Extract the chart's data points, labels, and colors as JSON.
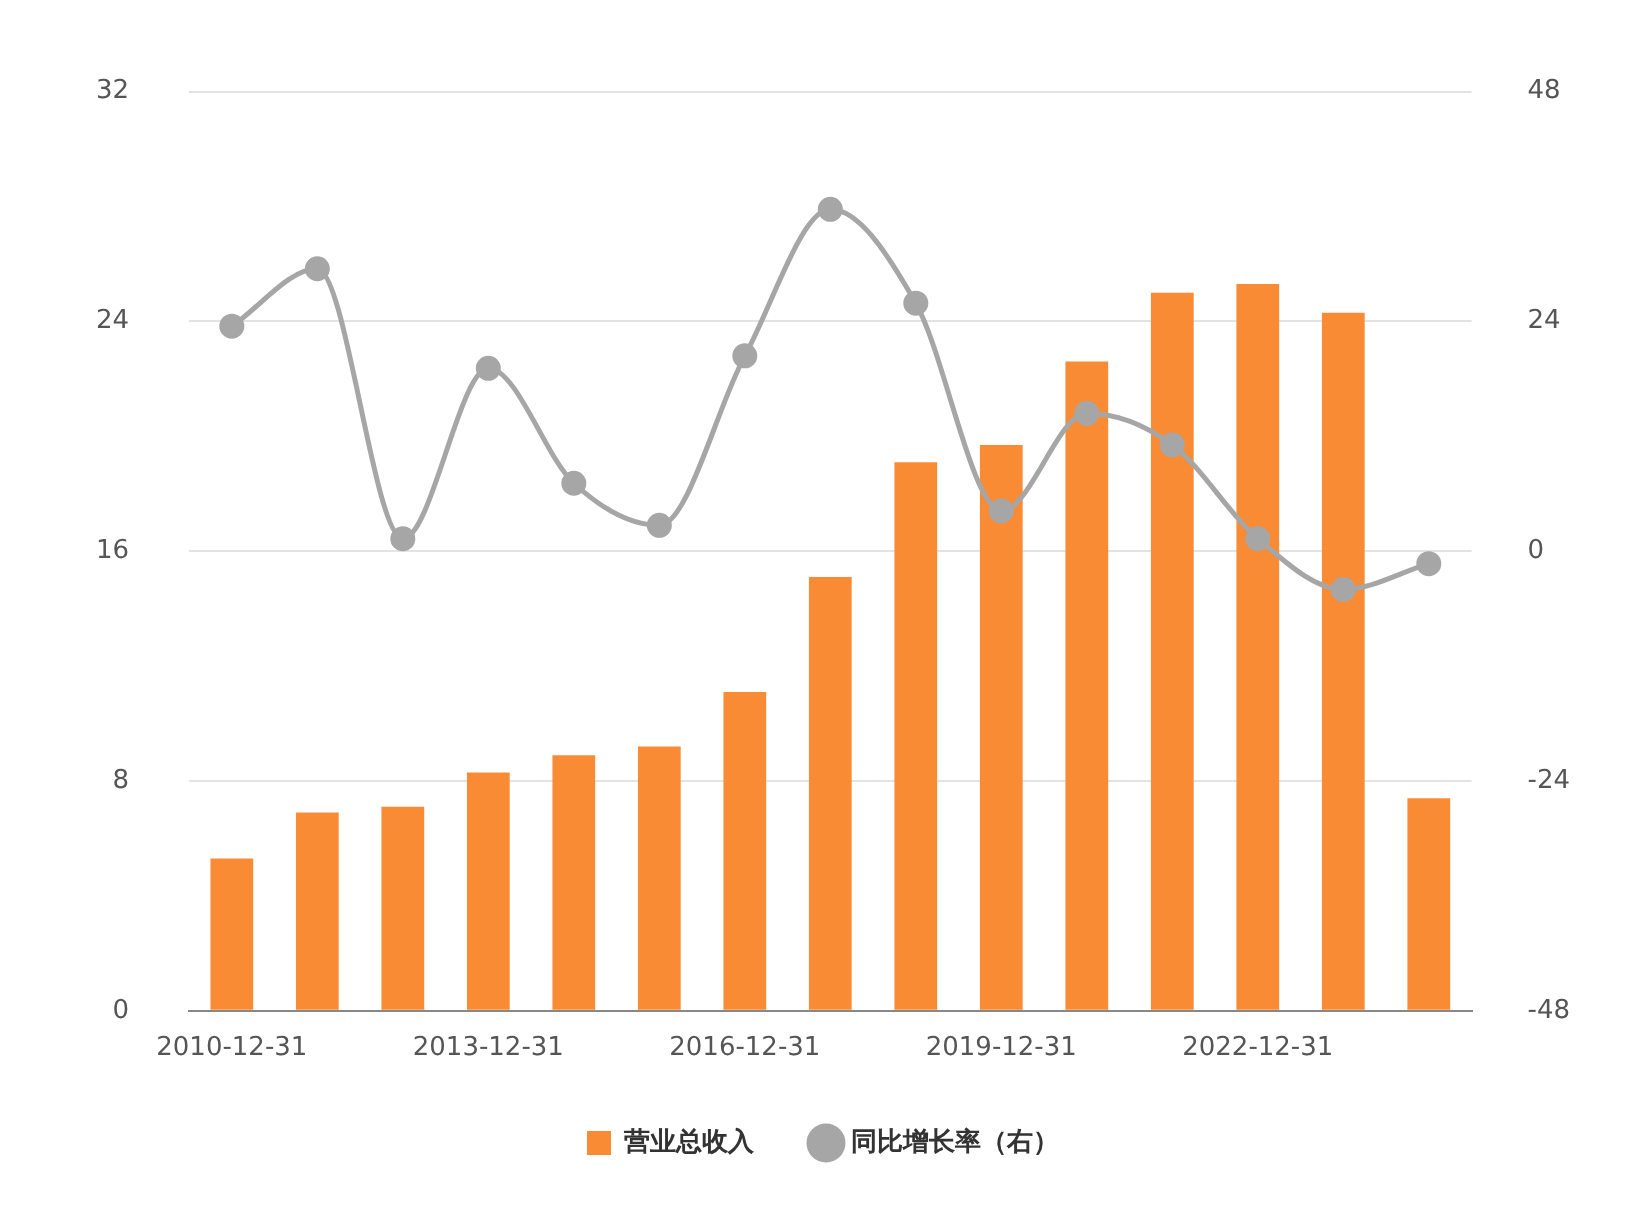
{
  "chart_data": {
    "type": "bar",
    "categories": [
      "2010-12-31",
      null,
      null,
      "2013-12-31",
      null,
      null,
      "2016-12-31",
      null,
      null,
      "2019-12-31",
      null,
      null,
      "2022-12-31",
      null,
      null
    ],
    "series": [
      {
        "name": "营业总收入",
        "color": "#f98b34",
        "values": [
          5.3,
          6.9,
          7.1,
          8.3,
          8.9,
          9.2,
          11.1,
          15.1,
          19.1,
          19.7,
          22.6,
          25.0,
          25.3,
          24.3,
          7.4
        ]
      },
      {
        "name": "同比增长率（右）",
        "type": "line",
        "axis": "y2",
        "color": "#a6a6a6",
        "values": [
          23.5,
          29.5,
          1.3,
          19.1,
          7.1,
          2.7,
          20.4,
          35.7,
          25.9,
          4.2,
          14.4,
          11.1,
          1.3,
          -4.0,
          -1.3
        ]
      }
    ],
    "ylim": [
      0,
      32
    ],
    "yticks": [
      0,
      8,
      16,
      24,
      32
    ],
    "y2lim": [
      -48,
      48
    ],
    "y2ticks": [
      -48,
      -24,
      0,
      24,
      48
    ],
    "grid": "y",
    "legend": "bottom",
    "marker": "circle",
    "line_style": "solid"
  }
}
